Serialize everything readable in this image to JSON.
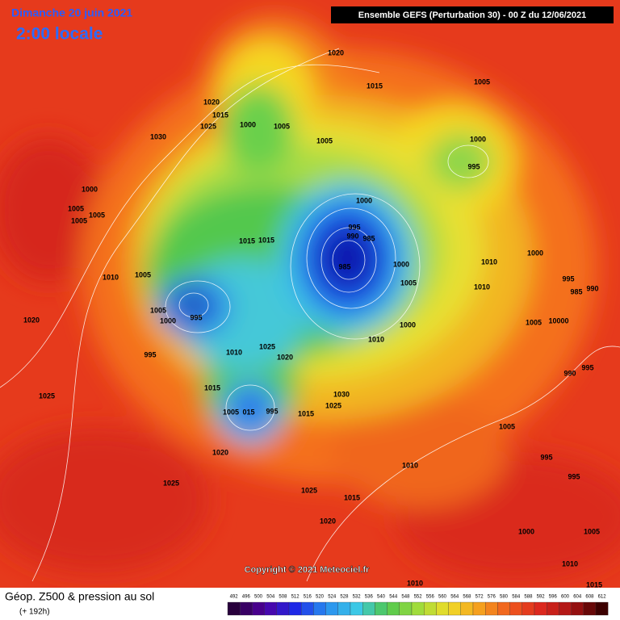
{
  "header": {
    "date": "Dimanche 20 juin 2021",
    "time": "2:00 locale",
    "run": "Ensemble GEFS  (Perturbation 30)  -  00 Z du 12/06/2021"
  },
  "map": {
    "isobar_labels": [
      "1020",
      "1015",
      "1005",
      "1020",
      "1015",
      "1025",
      "1000",
      "1005",
      "1030",
      "1005",
      "1000",
      "995",
      "1000",
      "1005",
      "1005",
      "1005",
      "1000",
      "995",
      "990",
      "985",
      "1015",
      "1015",
      "1010",
      "1000",
      "985",
      "1000",
      "1005",
      "1010",
      "1005",
      "995",
      "985",
      "990",
      "1010",
      "1005",
      "1000",
      "995",
      "1020",
      "1000",
      "1005",
      "10000",
      "1010",
      "1025",
      "1010",
      "1020",
      "995",
      "990",
      "995",
      "1015",
      "1030",
      "1025",
      "1025",
      "1005",
      "015",
      "995",
      "1015",
      "1005",
      "1020",
      "1010",
      "995",
      "1025",
      "995",
      "1025",
      "1015",
      "1020",
      "1000",
      "1005",
      "1010",
      "1010",
      "1015"
    ],
    "copyright": "Copyright © 2021 Meteociel.fr"
  },
  "footer": {
    "title": "Géop. Z500 & pression au sol",
    "lead": "(+ 192h)",
    "scale": [
      492,
      496,
      500,
      504,
      508,
      512,
      516,
      520,
      524,
      528,
      532,
      536,
      540,
      544,
      548,
      552,
      556,
      560,
      564,
      568,
      572,
      576,
      580,
      584,
      588,
      592,
      596,
      600,
      604,
      608,
      612
    ]
  }
}
